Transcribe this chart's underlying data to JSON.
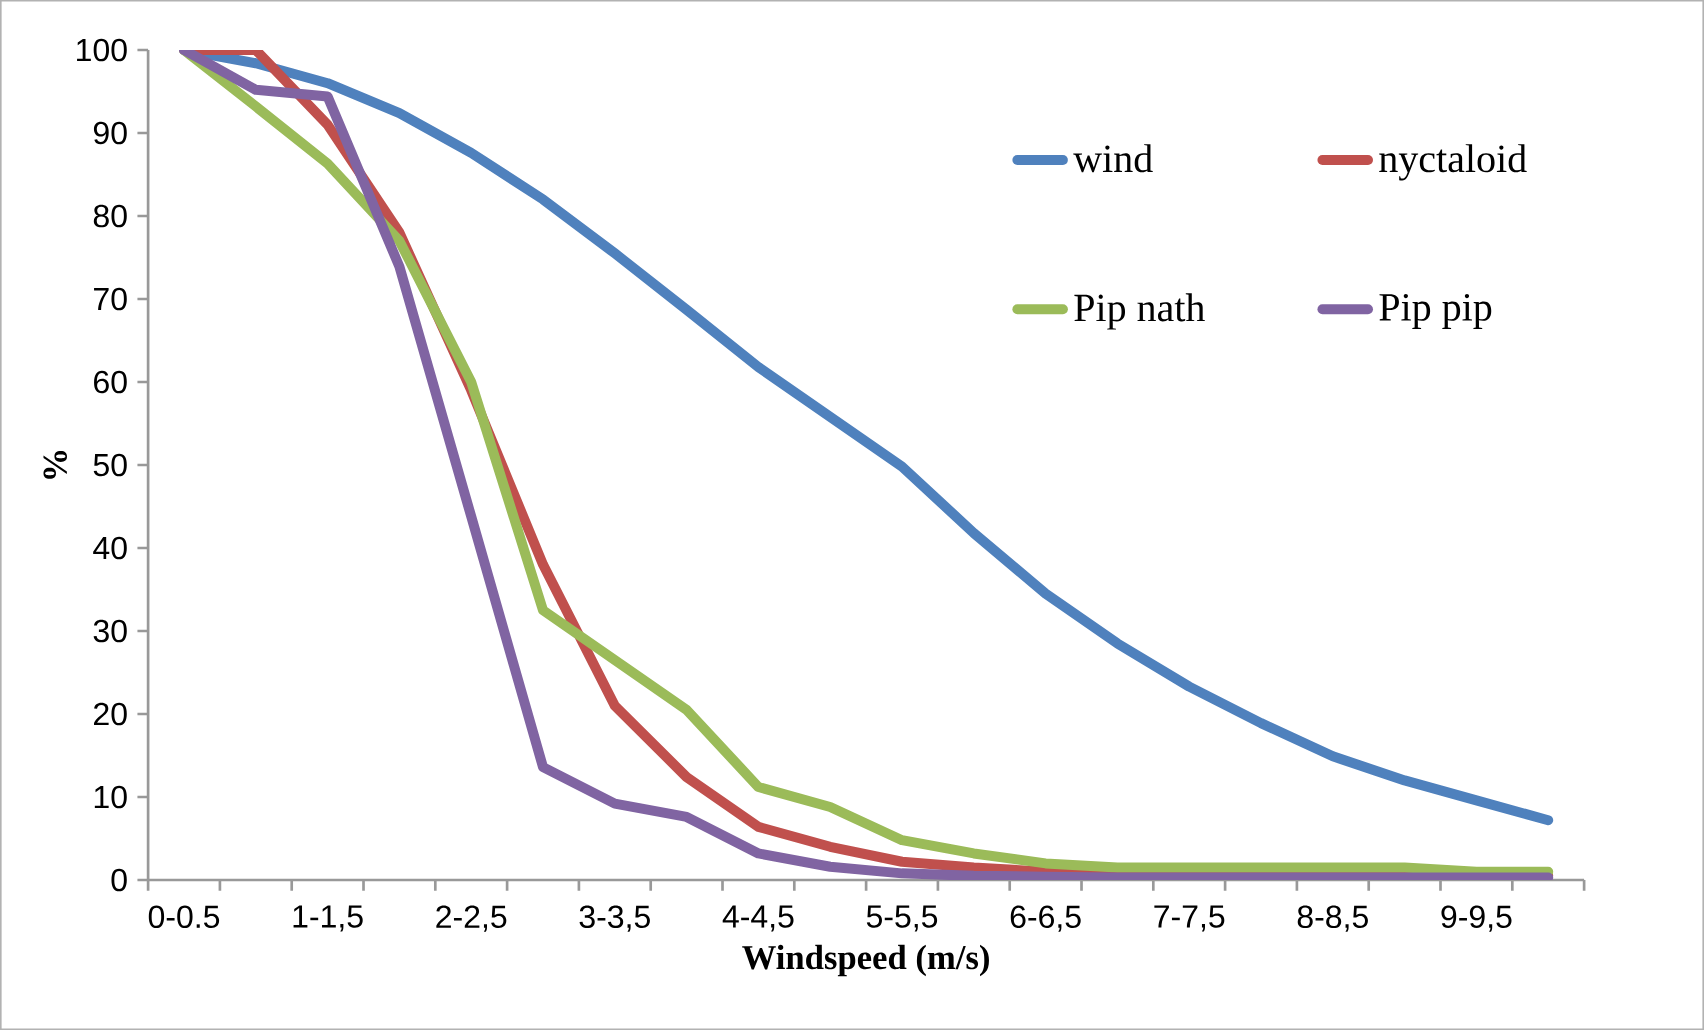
{
  "chart_data": {
    "type": "line",
    "xlabel": "Windspeed (m/s)",
    "ylabel": "%",
    "categories": [
      "0-0.5",
      null,
      "1-1,5",
      null,
      "2-2,5",
      null,
      "3-3,5",
      null,
      "4-4,5",
      null,
      "5-5,5",
      null,
      "6-6,5",
      null,
      "7-7,5",
      null,
      "8-8,5",
      null,
      "9-9,5",
      null
    ],
    "ylim": [
      0,
      100
    ],
    "yticks": [
      0,
      10,
      20,
      30,
      40,
      50,
      60,
      70,
      80,
      90,
      100
    ],
    "grid": false,
    "legend": "top right",
    "marker": "none",
    "line_style": "solid",
    "series": [
      {
        "name": "wind",
        "color": "#4f81bd",
        "values": [
          100,
          98.4,
          96,
          92.4,
          87.6,
          82,
          75.5,
          68.7,
          61.8,
          55.8,
          49.8,
          41.8,
          34.5,
          28.5,
          23.3,
          18.9,
          14.9,
          12,
          9.6,
          7.2
        ]
      },
      {
        "name": "nyctaloid",
        "color": "#c0504d",
        "values": [
          100,
          100,
          91,
          78,
          59,
          38,
          21,
          12.4,
          6.4,
          4,
          2.2,
          1.5,
          1,
          0.8,
          0.8,
          0.7,
          0.6,
          0.6,
          0.5,
          0.5
        ]
      },
      {
        "name": "Pip nath",
        "color": "#9bbb59",
        "values": [
          100,
          93.2,
          86.3,
          77,
          60,
          32.5,
          26.5,
          20.5,
          11.2,
          8.8,
          4.8,
          3.2,
          2,
          1.5,
          1.5,
          1.5,
          1.5,
          1.5,
          1,
          1
        ]
      },
      {
        "name": "Pip pip",
        "color": "#8064a2",
        "values": [
          100,
          95.2,
          94.4,
          73.9,
          43.8,
          13.6,
          9.2,
          7.6,
          3.2,
          1.6,
          0.8,
          0.5,
          0.4,
          0.3,
          0.3,
          0.3,
          0.3,
          0.3,
          0.3,
          0.3
        ]
      }
    ]
  }
}
